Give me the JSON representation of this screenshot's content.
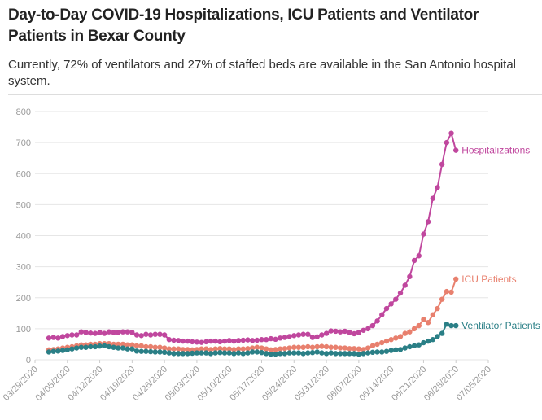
{
  "chart_data": {
    "type": "line",
    "title": "Day-to-Day COVID-19 Hospitalizations, ICU Patients and Ventilator Patients in Bexar County",
    "subtitle": "Currently, 72% of ventilators and 27% of staffed beds are available in the San Antonio hospital system.",
    "x": [
      "04/01/2020",
      "04/02/2020",
      "04/03/2020",
      "04/04/2020",
      "04/05/2020",
      "04/06/2020",
      "04/07/2020",
      "04/08/2020",
      "04/09/2020",
      "04/10/2020",
      "04/11/2020",
      "04/12/2020",
      "04/13/2020",
      "04/14/2020",
      "04/15/2020",
      "04/16/2020",
      "04/17/2020",
      "04/18/2020",
      "04/19/2020",
      "04/20/2020",
      "04/21/2020",
      "04/22/2020",
      "04/23/2020",
      "04/24/2020",
      "04/25/2020",
      "04/26/2020",
      "04/27/2020",
      "04/28/2020",
      "04/29/2020",
      "04/30/2020",
      "05/01/2020",
      "05/02/2020",
      "05/03/2020",
      "05/04/2020",
      "05/05/2020",
      "05/06/2020",
      "05/07/2020",
      "05/08/2020",
      "05/09/2020",
      "05/10/2020",
      "05/11/2020",
      "05/12/2020",
      "05/13/2020",
      "05/14/2020",
      "05/15/2020",
      "05/16/2020",
      "05/17/2020",
      "05/18/2020",
      "05/19/2020",
      "05/20/2020",
      "05/21/2020",
      "05/22/2020",
      "05/23/2020",
      "05/24/2020",
      "05/25/2020",
      "05/26/2020",
      "05/27/2020",
      "05/28/2020",
      "05/29/2020",
      "05/30/2020",
      "05/31/2020",
      "06/01/2020",
      "06/02/2020",
      "06/03/2020",
      "06/04/2020",
      "06/05/2020",
      "06/06/2020",
      "06/07/2020",
      "06/08/2020",
      "06/09/2020",
      "06/10/2020",
      "06/11/2020",
      "06/12/2020",
      "06/13/2020",
      "06/14/2020",
      "06/15/2020",
      "06/16/2020",
      "06/17/2020",
      "06/18/2020",
      "06/19/2020",
      "06/20/2020",
      "06/21/2020",
      "06/22/2020",
      "06/23/2020",
      "06/24/2020",
      "06/25/2020",
      "06/26/2020",
      "06/27/2020",
      "06/28/2020"
    ],
    "series": [
      {
        "name": "Hospitalizations",
        "color": "#c0479e",
        "values": [
          70,
          72,
          70,
          75,
          78,
          80,
          80,
          90,
          88,
          86,
          85,
          88,
          85,
          90,
          88,
          88,
          90,
          90,
          88,
          80,
          78,
          82,
          80,
          82,
          82,
          80,
          65,
          63,
          62,
          60,
          60,
          58,
          57,
          56,
          58,
          60,
          60,
          58,
          60,
          62,
          60,
          62,
          63,
          64,
          62,
          63,
          65,
          65,
          68,
          66,
          70,
          72,
          75,
          78,
          80,
          82,
          82,
          72,
          74,
          80,
          85,
          93,
          92,
          90,
          92,
          88,
          84,
          88,
          95,
          100,
          110,
          125,
          145,
          165,
          180,
          195,
          215,
          240,
          268,
          320,
          335,
          405,
          445,
          520,
          555,
          630,
          700,
          730,
          675
        ]
      },
      {
        "name": "ICU Patients",
        "color": "#e8806e",
        "values": [
          32,
          33,
          35,
          38,
          40,
          42,
          45,
          48,
          48,
          50,
          50,
          52,
          52,
          52,
          50,
          50,
          50,
          48,
          48,
          45,
          45,
          42,
          42,
          40,
          40,
          38,
          35,
          35,
          35,
          33,
          33,
          32,
          33,
          35,
          35,
          33,
          35,
          36,
          35,
          35,
          33,
          35,
          35,
          36,
          38,
          40,
          38,
          35,
          32,
          33,
          35,
          36,
          38,
          40,
          40,
          40,
          42,
          40,
          42,
          43,
          42,
          40,
          40,
          38,
          38,
          36,
          36,
          35,
          33,
          38,
          45,
          50,
          55,
          60,
          65,
          70,
          75,
          85,
          90,
          100,
          110,
          130,
          120,
          145,
          165,
          195,
          220,
          218,
          260
        ]
      },
      {
        "name": "Ventilator Patients",
        "color": "#2a7f86",
        "values": [
          25,
          27,
          28,
          30,
          32,
          35,
          38,
          40,
          40,
          42,
          42,
          44,
          45,
          42,
          40,
          38,
          38,
          35,
          35,
          28,
          27,
          27,
          26,
          25,
          25,
          24,
          22,
          20,
          20,
          20,
          20,
          21,
          22,
          22,
          22,
          20,
          22,
          23,
          22,
          22,
          20,
          22,
          20,
          22,
          25,
          25,
          23,
          20,
          18,
          18,
          20,
          20,
          22,
          22,
          22,
          20,
          22,
          23,
          25,
          22,
          20,
          22,
          20,
          20,
          20,
          20,
          20,
          18,
          20,
          22,
          24,
          25,
          25,
          27,
          30,
          32,
          33,
          38,
          42,
          45,
          48,
          55,
          60,
          65,
          75,
          85,
          115,
          110,
          110
        ]
      }
    ],
    "xlim": [
      "03/29/2020",
      "07/05/2020"
    ],
    "xticks": [
      "03/29/2020",
      "04/05/2020",
      "04/12/2020",
      "04/19/2020",
      "04/26/2020",
      "05/03/2020",
      "05/10/2020",
      "05/17/2020",
      "05/24/2020",
      "05/31/2020",
      "06/07/2020",
      "06/14/2020",
      "06/21/2020",
      "06/28/2020",
      "07/05/2020"
    ],
    "ylim": [
      0,
      800
    ],
    "yticks": [
      0,
      100,
      200,
      300,
      400,
      500,
      600,
      700,
      800
    ],
    "grid": true
  }
}
